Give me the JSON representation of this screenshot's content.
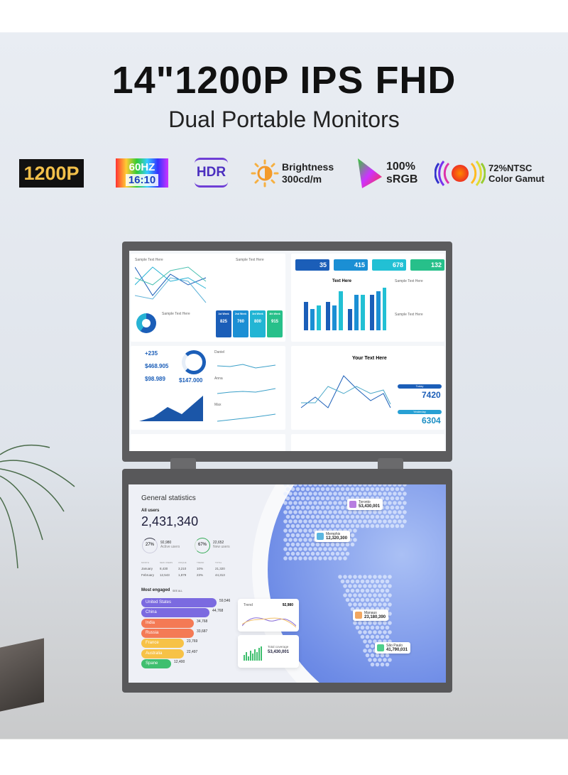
{
  "header": {
    "title": "14\"1200P IPS FHD",
    "subtitle": "Dual Portable Monitors"
  },
  "badges": {
    "resolution": "1200P",
    "refresh": "60HZ",
    "ratio": "16:10",
    "hdr": "HDR",
    "brightness_label": "Brightness",
    "brightness_value": "300cd/m",
    "srgb_value": "100%",
    "srgb_label": "sRGB",
    "ntsc_value": "72%NTSC",
    "ntsc_label": "Color Gamut"
  },
  "top_screen": {
    "panel1": {
      "title": "Sample Text Here",
      "list_title": "Sample Text Here",
      "donut_title": "Sample Text Here",
      "weeks": [
        {
          "label": "1st Week",
          "value": "825"
        },
        {
          "label": "2nd Week",
          "value": "760"
        },
        {
          "label": "3rd Week",
          "value": "800"
        },
        {
          "label": "4th Week",
          "value": "915"
        }
      ]
    },
    "panel2": {
      "stats": [
        "35",
        "415",
        "678",
        "132"
      ],
      "chart_title": "Text Here",
      "side_title": "Sample Text Here",
      "side_title2": "Sample Text Here"
    },
    "panel3": {
      "kpis": [
        "+235",
        "$468.905",
        "$98.989"
      ],
      "ring_value": "$147.000",
      "mini_titles": [
        "Daniel",
        "Anna",
        "Max"
      ]
    },
    "panel4": {
      "title": "Your Text Here",
      "today_label": "Today",
      "today_value": "7420",
      "yesterday_label": "Yesterday",
      "yesterday_value": "6304"
    }
  },
  "bottom_screen": {
    "title": "General statistics",
    "all_users_label": "All users",
    "all_users_value": "2,431,340",
    "active": {
      "pct": "27%",
      "value": "92,980",
      "label": "Active users"
    },
    "new": {
      "pct": "67%",
      "value": "22,652",
      "label": "New users"
    },
    "table": {
      "headers": [
        "MONTH",
        "NEW USERS",
        "UNIQUE",
        "TREND",
        "TOTAL"
      ],
      "rows": [
        [
          "January",
          "8,430",
          "3,210",
          "10%",
          "21,320"
        ],
        [
          "February",
          "12,543",
          "1,879",
          "23%",
          "44,313"
        ]
      ]
    },
    "engaged_title": "Most engaged",
    "engaged_link": "SEE ALL",
    "countries": [
      {
        "name": "United States",
        "value": "59,546",
        "color": "#7b6ae0"
      },
      {
        "name": "China",
        "value": "44,768",
        "color": "#7b6ae0"
      },
      {
        "name": "India",
        "value": "34,768",
        "color": "#f47a55"
      },
      {
        "name": "Russia",
        "value": "33,687",
        "color": "#f47a55"
      },
      {
        "name": "France",
        "value": "23,769",
        "color": "#f7c247"
      },
      {
        "name": "Australia",
        "value": "22,497",
        "color": "#f7c247"
      },
      {
        "name": "Spane",
        "value": "12,400",
        "color": "#3fbf6f"
      }
    ],
    "trend": {
      "title": "Trend",
      "value": "92,980"
    },
    "coverage": {
      "title": "Total coverage",
      "value": "53,430,001"
    },
    "pins": [
      {
        "city": "Toronto",
        "value": "53,430,001",
        "color": "#b77de0"
      },
      {
        "city": "Memphis",
        "value": "12,320,300",
        "color": "#5ab6e0"
      },
      {
        "city": "Manaus",
        "value": "23,180,390",
        "color": "#f2a760"
      },
      {
        "city": "São Paulo",
        "value": "41,790,031",
        "color": "#4fcf8a"
      }
    ]
  }
}
